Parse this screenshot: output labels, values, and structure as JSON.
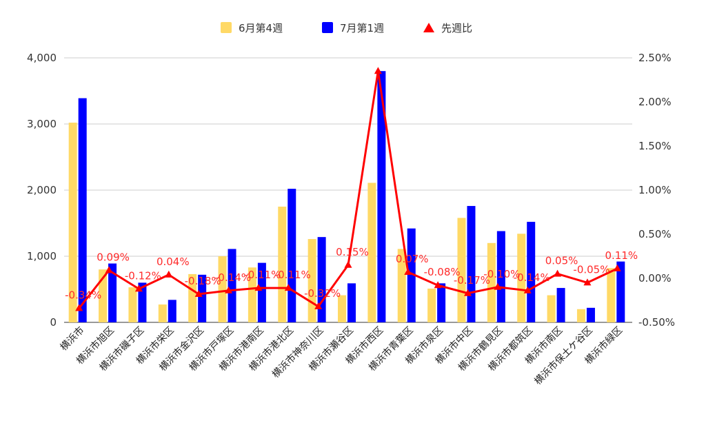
{
  "chart_data": {
    "type": "bar",
    "categories": [
      "横浜市",
      "横浜市旭区",
      "横浜市磯子区",
      "横浜市栄区",
      "横浜市金沢区",
      "横浜市戸塚区",
      "横浜市港南区",
      "横浜市港北区",
      "横浜市神奈川区",
      "横浜市瀬谷区",
      "横浜市西区",
      "横浜市青葉区",
      "横浜市泉区",
      "横浜市中区",
      "横浜市鶴見区",
      "横浜市都筑区",
      "横浜市南区",
      "横浜市保土ケ谷区",
      "横浜市緑区"
    ],
    "series": [
      {
        "name": "6月第4週",
        "type": "bar",
        "axis": "left",
        "color": "#ffd966",
        "values": [
          3020,
          800,
          530,
          270,
          730,
          1000,
          830,
          1750,
          1260,
          410,
          2110,
          1110,
          510,
          1580,
          1200,
          1340,
          410,
          200,
          820
        ]
      },
      {
        "name": "7月第1週",
        "type": "bar",
        "axis": "left",
        "color": "#0000ff",
        "values": [
          3390,
          890,
          600,
          340,
          720,
          1110,
          900,
          2020,
          1290,
          590,
          3800,
          1420,
          590,
          1760,
          1380,
          1520,
          520,
          220,
          920
        ]
      },
      {
        "name": "先週比",
        "type": "line",
        "axis": "right",
        "color": "#ff0000",
        "marker": "triangle",
        "values": [
          -0.34,
          0.09,
          -0.12,
          0.04,
          -0.18,
          -0.14,
          -0.11,
          -0.11,
          -0.32,
          0.15,
          2.35,
          0.07,
          -0.08,
          -0.17,
          -0.1,
          -0.14,
          0.05,
          -0.05,
          0.11
        ],
        "labels": [
          "-0.34%",
          "0.09%",
          "-0.12%",
          "0.04%",
          "-0.18%",
          "-0.14%",
          "-0.11%",
          "-0.11%",
          "-0.32%",
          "0.15%",
          "",
          "0.07%",
          "-0.08%",
          "-0.17%",
          "-0.10%",
          "-0.14%",
          "0.05%",
          "-0.05%",
          "0.11%"
        ]
      }
    ],
    "y_left": {
      "min": 0,
      "max": 4000,
      "ticks": [
        0,
        1000,
        2000,
        3000,
        4000
      ],
      "tick_labels": [
        "0",
        "1,000",
        "2,000",
        "3,000",
        "4,000"
      ]
    },
    "y_right": {
      "min": -0.5,
      "max": 2.5,
      "ticks": [
        -0.5,
        0,
        0.5,
        1.0,
        1.5,
        2.0,
        2.5
      ],
      "tick_labels": [
        "-0.50%",
        "0.00%",
        "0.50%",
        "1.00%",
        "1.50%",
        "2.00%",
        "2.50%"
      ]
    },
    "grid": true,
    "legend_position": "top-center"
  }
}
